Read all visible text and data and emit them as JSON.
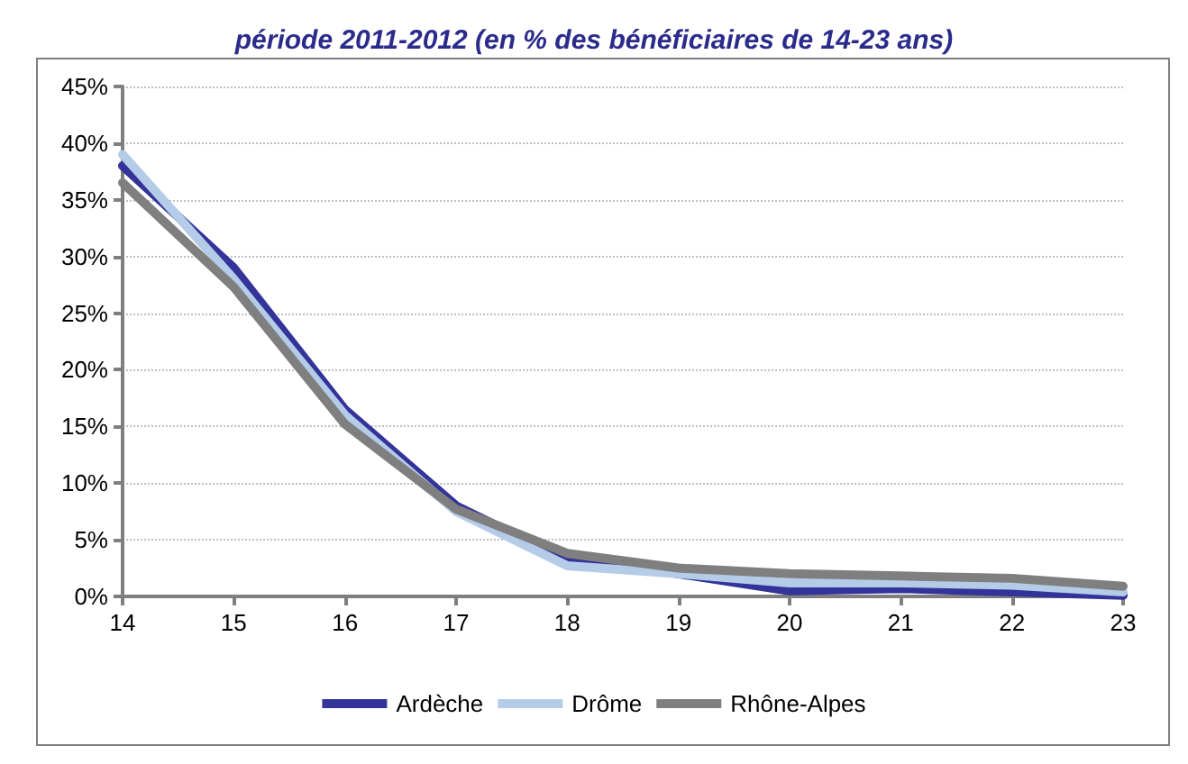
{
  "chart_data": {
    "type": "line",
    "title": "période 2011-2012 (en % des bénéficiaires de 14-23 ans)",
    "categories": [
      "14",
      "15",
      "16",
      "17",
      "18",
      "19",
      "20",
      "21",
      "22",
      "23"
    ],
    "series": [
      {
        "name": "Ardèche",
        "color": "#333399",
        "values": [
          38,
          29,
          16.5,
          8,
          3.2,
          2,
          0.5,
          0.7,
          0.4,
          0.1
        ]
      },
      {
        "name": "Drôme",
        "color": "#b4cce8",
        "values": [
          39,
          28,
          16,
          7.5,
          2.7,
          2,
          1.2,
          1.2,
          1,
          0.4
        ]
      },
      {
        "name": "Rhône-Alpes",
        "color": "#7f7f7f",
        "values": [
          36.5,
          27.3,
          15.2,
          7.7,
          3.8,
          2.5,
          2,
          1.8,
          1.6,
          0.9
        ]
      }
    ],
    "ylim": [
      0,
      45
    ],
    "yticks": [
      {
        "value": 0,
        "label": "0%"
      },
      {
        "value": 5,
        "label": "5%"
      },
      {
        "value": 10,
        "label": "10%"
      },
      {
        "value": 15,
        "label": "15%"
      },
      {
        "value": 20,
        "label": "20%"
      },
      {
        "value": 25,
        "label": "25%"
      },
      {
        "value": 30,
        "label": "30%"
      },
      {
        "value": 35,
        "label": "35%"
      },
      {
        "value": 40,
        "label": "40%"
      },
      {
        "value": 45,
        "label": "45%"
      }
    ],
    "grid": "y",
    "legend": "bottom",
    "marker": "none",
    "line_style": "solid"
  }
}
